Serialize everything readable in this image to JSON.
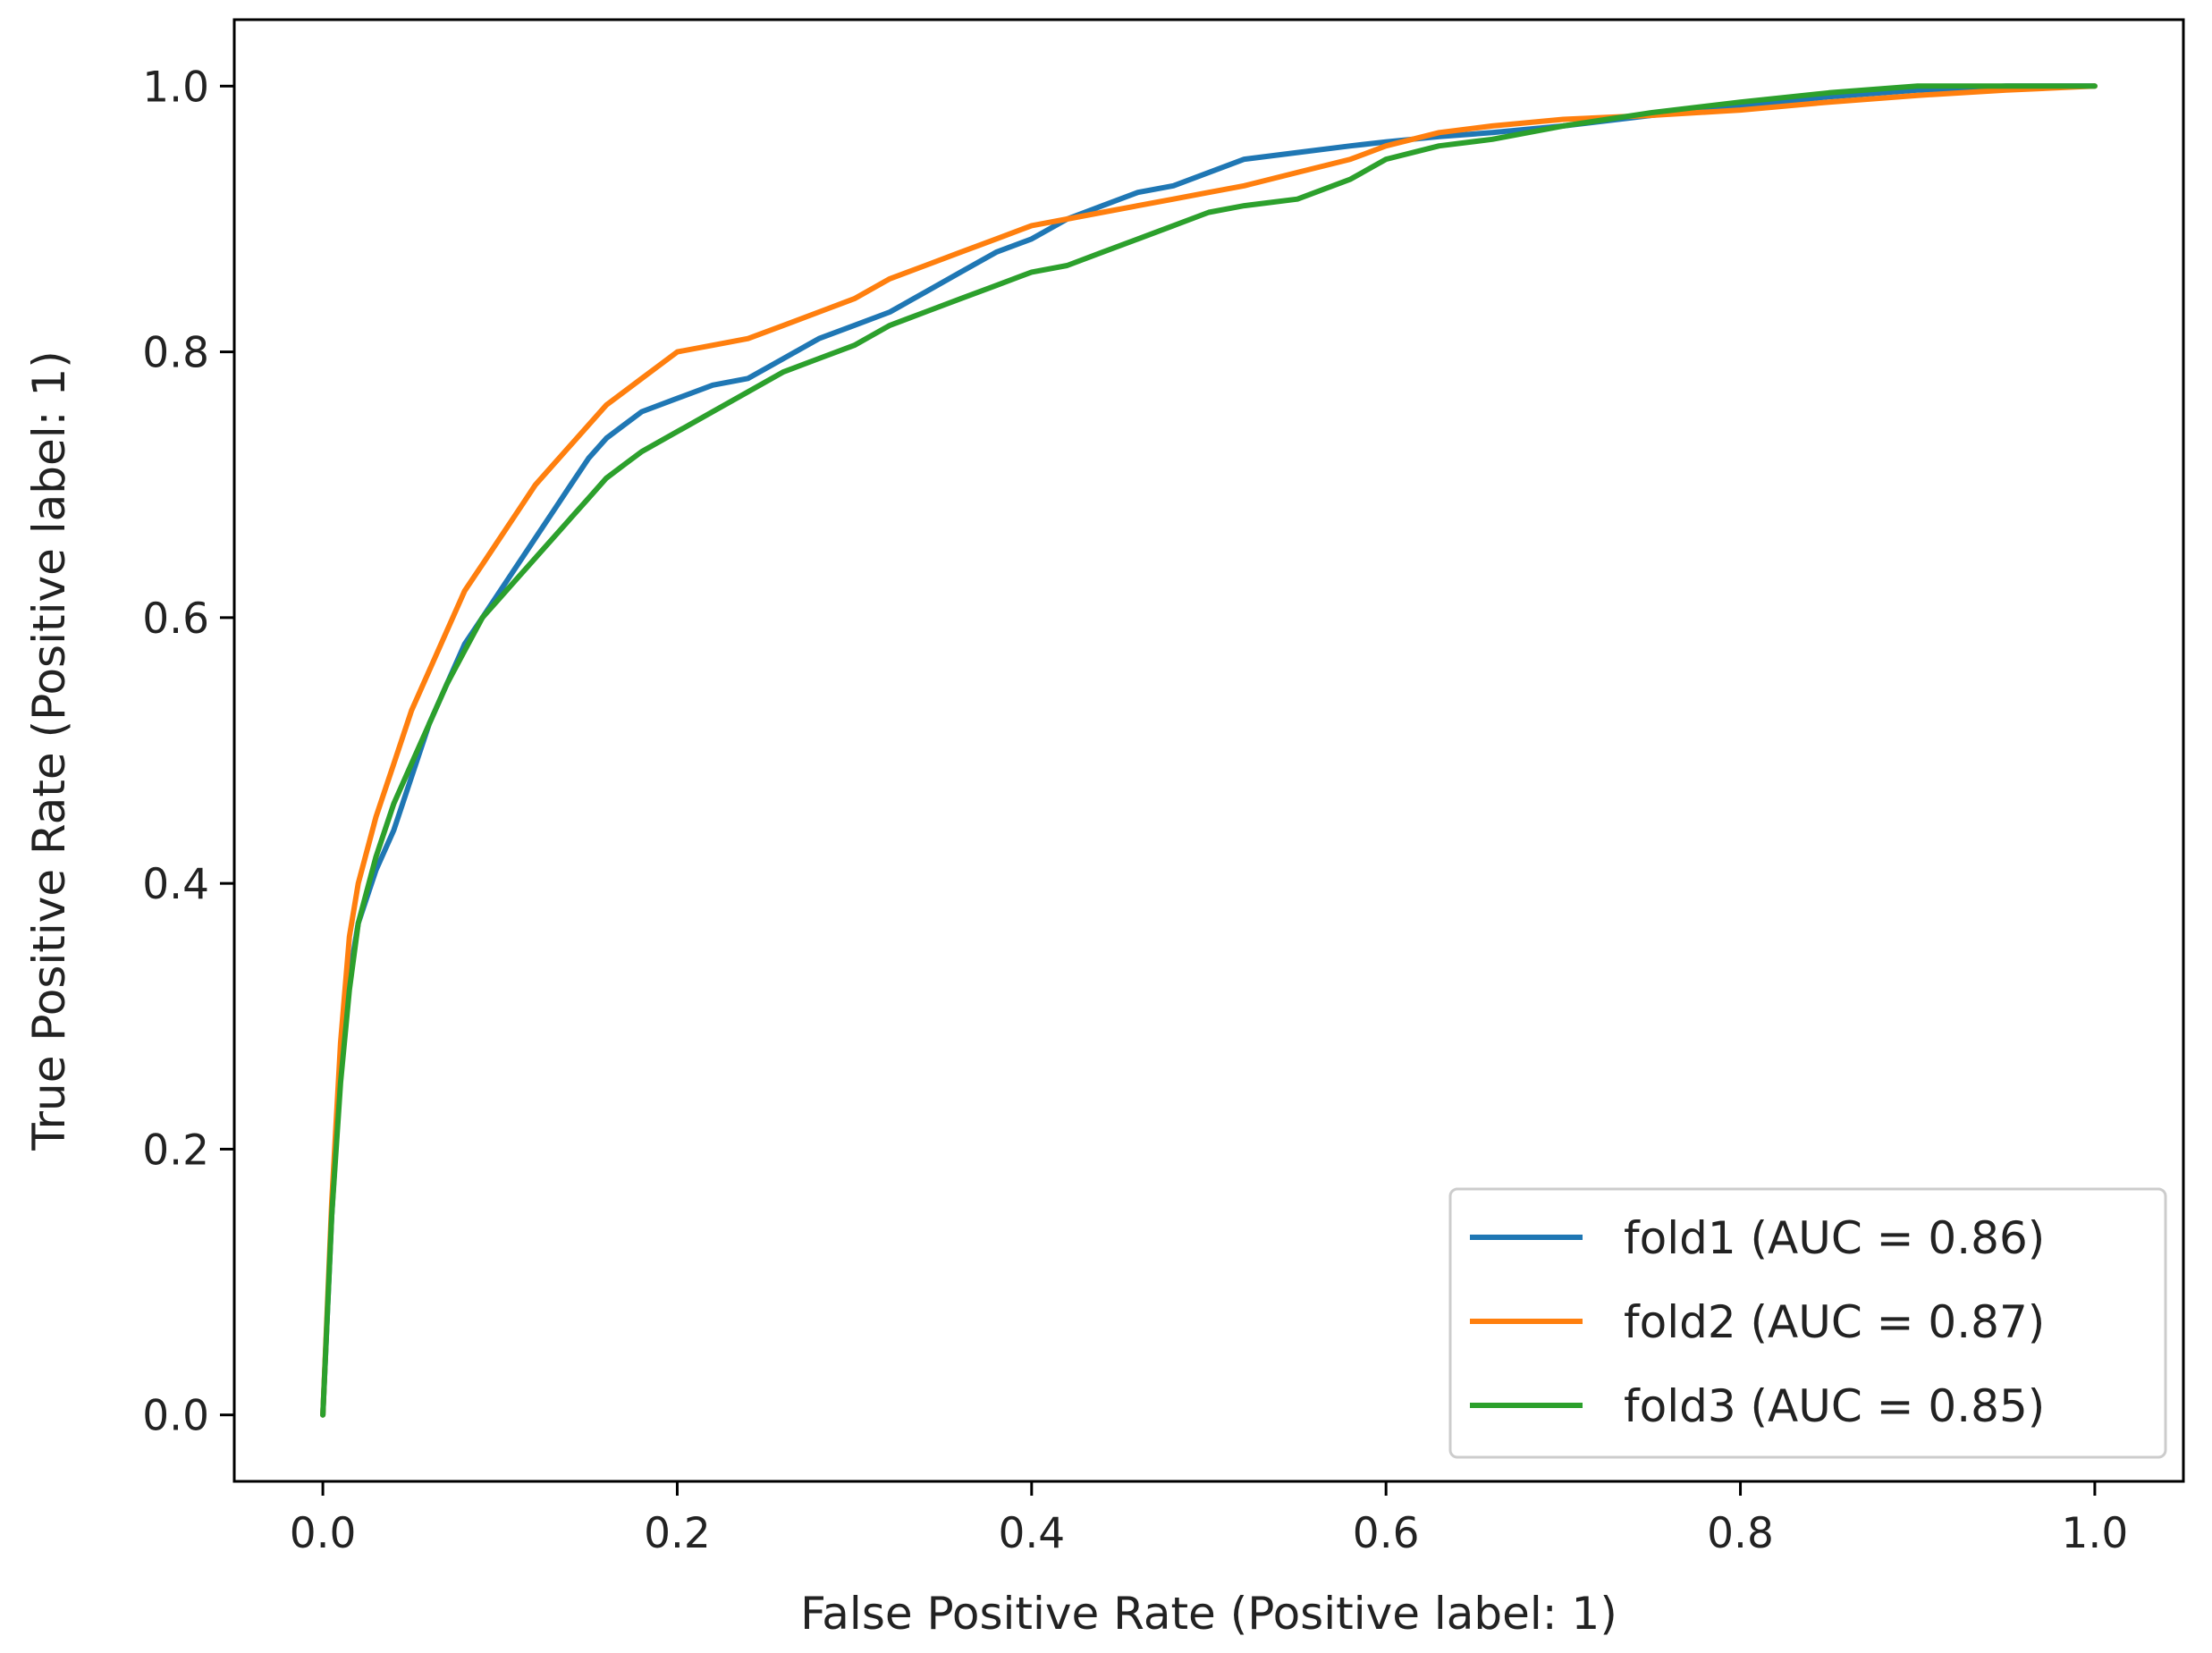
{
  "chart_data": {
    "type": "line",
    "title": "",
    "xlabel": "False Positive Rate (Positive label: 1)",
    "ylabel": "True Positive Rate (Positive label: 1)",
    "xlim": [
      -0.05,
      1.05
    ],
    "ylim": [
      -0.05,
      1.05
    ],
    "xticks": [
      0.0,
      0.2,
      0.4,
      0.6,
      0.8,
      1.0
    ],
    "xtick_labels": [
      "0.0",
      "0.2",
      "0.4",
      "0.6",
      "0.8",
      "1.0"
    ],
    "yticks": [
      0.0,
      0.2,
      0.4,
      0.6,
      0.8,
      1.0
    ],
    "ytick_labels": [
      "0.0",
      "0.2",
      "0.4",
      "0.6",
      "0.8",
      "1.0"
    ],
    "grid": false,
    "legend_position": "lower-right",
    "series": [
      {
        "name": "fold1 (AUC = 0.86)",
        "color": "#1f77b4",
        "points": [
          [
            0,
            0
          ],
          [
            0.005,
            0.15
          ],
          [
            0.01,
            0.26
          ],
          [
            0.015,
            0.33
          ],
          [
            0.02,
            0.37
          ],
          [
            0.03,
            0.41
          ],
          [
            0.04,
            0.44
          ],
          [
            0.05,
            0.48
          ],
          [
            0.06,
            0.52
          ],
          [
            0.07,
            0.55
          ],
          [
            0.08,
            0.58
          ],
          [
            0.09,
            0.6
          ],
          [
            0.1,
            0.62
          ],
          [
            0.11,
            0.64
          ],
          [
            0.12,
            0.66
          ],
          [
            0.13,
            0.68
          ],
          [
            0.14,
            0.7
          ],
          [
            0.15,
            0.72
          ],
          [
            0.16,
            0.735
          ],
          [
            0.17,
            0.745
          ],
          [
            0.18,
            0.755
          ],
          [
            0.2,
            0.765
          ],
          [
            0.22,
            0.775
          ],
          [
            0.24,
            0.78
          ],
          [
            0.26,
            0.795
          ],
          [
            0.28,
            0.81
          ],
          [
            0.3,
            0.82
          ],
          [
            0.32,
            0.83
          ],
          [
            0.34,
            0.845
          ],
          [
            0.36,
            0.86
          ],
          [
            0.38,
            0.875
          ],
          [
            0.4,
            0.885
          ],
          [
            0.42,
            0.9
          ],
          [
            0.44,
            0.91
          ],
          [
            0.46,
            0.92
          ],
          [
            0.48,
            0.925
          ],
          [
            0.5,
            0.935
          ],
          [
            0.52,
            0.945
          ],
          [
            0.55,
            0.95
          ],
          [
            0.58,
            0.955
          ],
          [
            0.6,
            0.958
          ],
          [
            0.63,
            0.962
          ],
          [
            0.66,
            0.965
          ],
          [
            0.7,
            0.97
          ],
          [
            0.75,
            0.978
          ],
          [
            0.8,
            0.985
          ],
          [
            0.85,
            0.992
          ],
          [
            0.9,
            0.997
          ],
          [
            0.95,
            1.0
          ],
          [
            1.0,
            1.0
          ]
        ]
      },
      {
        "name": "fold2 (AUC = 0.87)",
        "color": "#ff7f0e",
        "points": [
          [
            0,
            0
          ],
          [
            0.005,
            0.16
          ],
          [
            0.01,
            0.28
          ],
          [
            0.015,
            0.36
          ],
          [
            0.02,
            0.4
          ],
          [
            0.03,
            0.45
          ],
          [
            0.04,
            0.49
          ],
          [
            0.05,
            0.53
          ],
          [
            0.06,
            0.56
          ],
          [
            0.07,
            0.59
          ],
          [
            0.08,
            0.62
          ],
          [
            0.09,
            0.64
          ],
          [
            0.1,
            0.66
          ],
          [
            0.11,
            0.68
          ],
          [
            0.12,
            0.7
          ],
          [
            0.13,
            0.715
          ],
          [
            0.14,
            0.73
          ],
          [
            0.15,
            0.745
          ],
          [
            0.16,
            0.76
          ],
          [
            0.17,
            0.77
          ],
          [
            0.18,
            0.78
          ],
          [
            0.19,
            0.79
          ],
          [
            0.2,
            0.8
          ],
          [
            0.22,
            0.805
          ],
          [
            0.24,
            0.81
          ],
          [
            0.26,
            0.82
          ],
          [
            0.28,
            0.83
          ],
          [
            0.3,
            0.84
          ],
          [
            0.32,
            0.855
          ],
          [
            0.34,
            0.865
          ],
          [
            0.36,
            0.875
          ],
          [
            0.38,
            0.885
          ],
          [
            0.4,
            0.895
          ],
          [
            0.42,
            0.9
          ],
          [
            0.44,
            0.905
          ],
          [
            0.46,
            0.91
          ],
          [
            0.48,
            0.915
          ],
          [
            0.5,
            0.92
          ],
          [
            0.52,
            0.925
          ],
          [
            0.55,
            0.935
          ],
          [
            0.58,
            0.945
          ],
          [
            0.6,
            0.955
          ],
          [
            0.63,
            0.965
          ],
          [
            0.66,
            0.97
          ],
          [
            0.7,
            0.975
          ],
          [
            0.75,
            0.978
          ],
          [
            0.8,
            0.982
          ],
          [
            0.85,
            0.988
          ],
          [
            0.9,
            0.993
          ],
          [
            0.95,
            0.997
          ],
          [
            1.0,
            1.0
          ]
        ]
      },
      {
        "name": "fold3 (AUC = 0.85)",
        "color": "#2ca02c",
        "points": [
          [
            0,
            0
          ],
          [
            0.005,
            0.15
          ],
          [
            0.01,
            0.25
          ],
          [
            0.015,
            0.32
          ],
          [
            0.02,
            0.37
          ],
          [
            0.03,
            0.42
          ],
          [
            0.04,
            0.46
          ],
          [
            0.05,
            0.49
          ],
          [
            0.06,
            0.52
          ],
          [
            0.07,
            0.55
          ],
          [
            0.08,
            0.575
          ],
          [
            0.09,
            0.6
          ],
          [
            0.1,
            0.615
          ],
          [
            0.11,
            0.63
          ],
          [
            0.12,
            0.645
          ],
          [
            0.13,
            0.66
          ],
          [
            0.14,
            0.675
          ],
          [
            0.15,
            0.69
          ],
          [
            0.16,
            0.705
          ],
          [
            0.17,
            0.715
          ],
          [
            0.18,
            0.725
          ],
          [
            0.2,
            0.74
          ],
          [
            0.22,
            0.755
          ],
          [
            0.24,
            0.77
          ],
          [
            0.26,
            0.785
          ],
          [
            0.28,
            0.795
          ],
          [
            0.3,
            0.805
          ],
          [
            0.32,
            0.82
          ],
          [
            0.34,
            0.83
          ],
          [
            0.36,
            0.84
          ],
          [
            0.38,
            0.85
          ],
          [
            0.4,
            0.86
          ],
          [
            0.42,
            0.865
          ],
          [
            0.44,
            0.875
          ],
          [
            0.46,
            0.885
          ],
          [
            0.48,
            0.895
          ],
          [
            0.5,
            0.905
          ],
          [
            0.52,
            0.91
          ],
          [
            0.55,
            0.915
          ],
          [
            0.58,
            0.93
          ],
          [
            0.6,
            0.945
          ],
          [
            0.63,
            0.955
          ],
          [
            0.66,
            0.96
          ],
          [
            0.7,
            0.97
          ],
          [
            0.75,
            0.98
          ],
          [
            0.8,
            0.988
          ],
          [
            0.85,
            0.995
          ],
          [
            0.9,
            1.0
          ],
          [
            0.95,
            1.0
          ],
          [
            1.0,
            1.0
          ]
        ]
      }
    ]
  }
}
